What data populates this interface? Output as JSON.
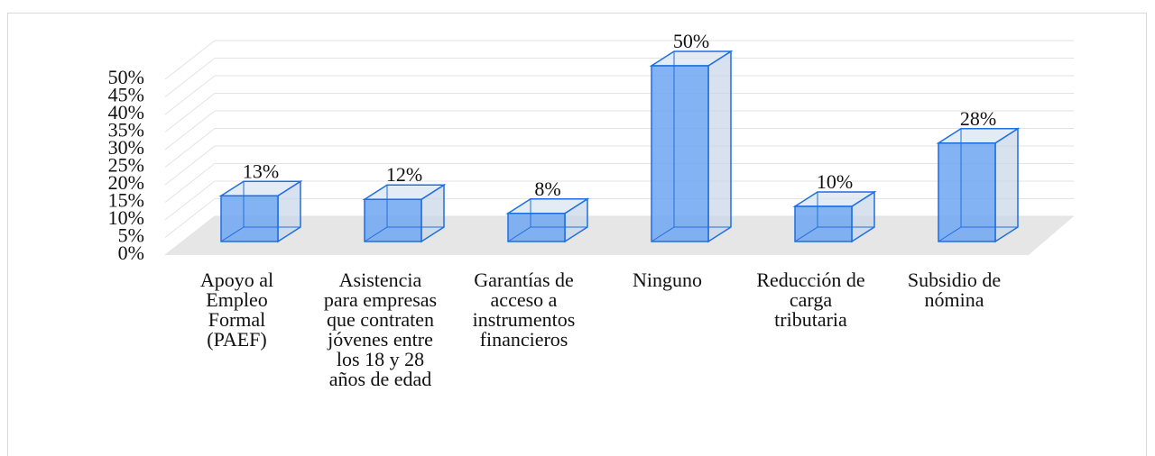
{
  "chart_data": {
    "type": "bar3d",
    "categories": [
      "Apoyo al Empleo Formal (PAEF)",
      "Asistencia para empresas que contraten jóvenes entre los 18 y 28 años de edad",
      "Garantías de acceso a instrumentos financieros",
      "Ninguno",
      "Reducción de carga tributaria",
      "Subsidio de nómina"
    ],
    "values": [
      13,
      12,
      8,
      50,
      10,
      28
    ],
    "value_labels": [
      "13%",
      "12%",
      "8%",
      "50%",
      "10%",
      "28%"
    ],
    "color": "#6fa6f2",
    "ylim": [
      0,
      50
    ],
    "yticks": [
      {
        "value": 0,
        "label": "0%"
      },
      {
        "value": 5,
        "label": "5%"
      },
      {
        "value": 10,
        "label": "10%"
      },
      {
        "value": 15,
        "label": "15%"
      },
      {
        "value": 20,
        "label": "20%"
      },
      {
        "value": 25,
        "label": "25%"
      },
      {
        "value": 30,
        "label": "30%"
      },
      {
        "value": 35,
        "label": "35%"
      },
      {
        "value": 40,
        "label": "40%"
      },
      {
        "value": 45,
        "label": "45%"
      },
      {
        "value": 50,
        "label": "50%"
      }
    ],
    "grid": true
  }
}
